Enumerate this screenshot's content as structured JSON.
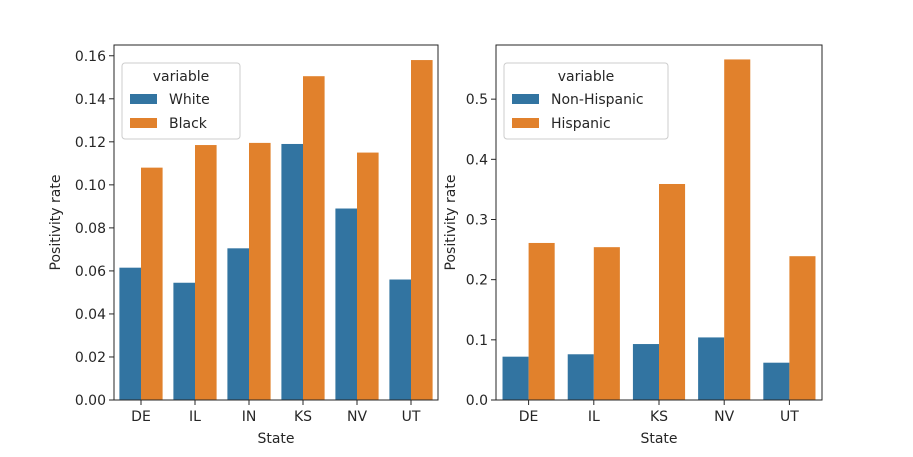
{
  "colors": {
    "series_a": "#3274a1",
    "series_b": "#e1812c",
    "frame": "#262626",
    "legend_border": "#cccccc"
  },
  "chart_data": [
    {
      "type": "bar",
      "xlabel": "State",
      "ylabel": "Positivity rate",
      "categories": [
        "DE",
        "IL",
        "IN",
        "KS",
        "NV",
        "UT"
      ],
      "ylim": [
        0,
        0.165
      ],
      "yticks": [
        0.0,
        0.02,
        0.04,
        0.06,
        0.08,
        0.1,
        0.12,
        0.14,
        0.16
      ],
      "ytick_labels": [
        "0.00",
        "0.02",
        "0.04",
        "0.06",
        "0.08",
        "0.10",
        "0.12",
        "0.14",
        "0.16"
      ],
      "legend": {
        "title": "variable",
        "placement": "top-left"
      },
      "series": [
        {
          "name": "White",
          "values": [
            0.0615,
            0.0545,
            0.0705,
            0.119,
            0.089,
            0.056
          ]
        },
        {
          "name": "Black",
          "values": [
            0.108,
            0.1185,
            0.1195,
            0.1505,
            0.115,
            0.158
          ]
        }
      ]
    },
    {
      "type": "bar",
      "xlabel": "State",
      "ylabel": "Positivity rate",
      "categories": [
        "DE",
        "IL",
        "KS",
        "NV",
        "UT"
      ],
      "ylim": [
        0,
        0.59
      ],
      "yticks": [
        0.0,
        0.1,
        0.2,
        0.3,
        0.4,
        0.5
      ],
      "ytick_labels": [
        "0.0",
        "0.1",
        "0.2",
        "0.3",
        "0.4",
        "0.5"
      ],
      "legend": {
        "title": "variable",
        "placement": "top-left"
      },
      "series": [
        {
          "name": "Non-Hispanic",
          "values": [
            0.072,
            0.076,
            0.093,
            0.104,
            0.062
          ]
        },
        {
          "name": "Hispanic",
          "values": [
            0.261,
            0.254,
            0.359,
            0.566,
            0.239
          ]
        }
      ]
    }
  ]
}
